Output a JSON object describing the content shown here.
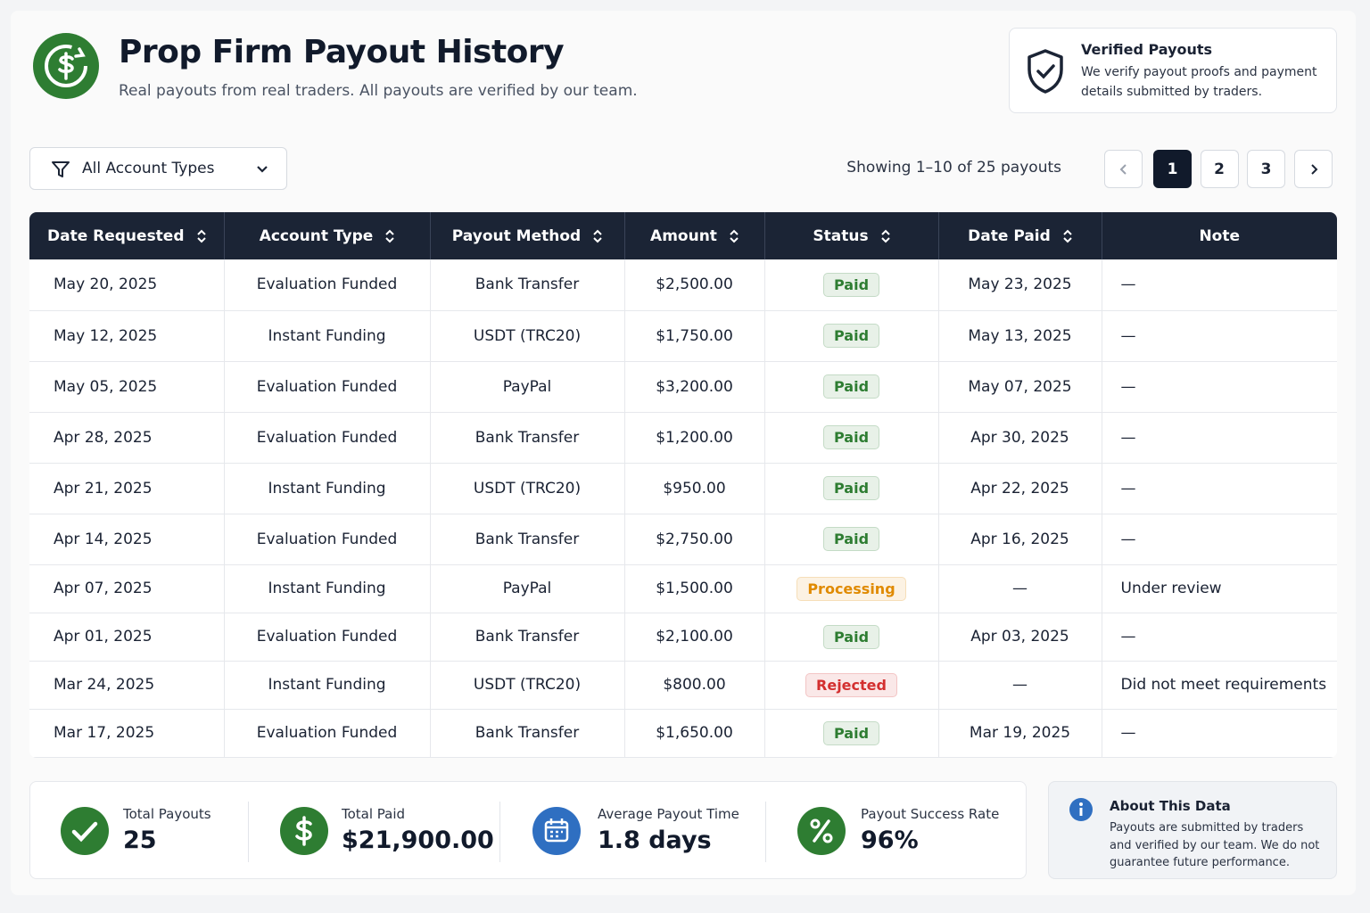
{
  "header": {
    "title": "Prop Firm Payout History",
    "subtitle": "Real payouts from real traders. All payouts are verified by our team."
  },
  "verified": {
    "title": "Verified Payouts",
    "text": "We verify payout proofs and payment details submitted by traders."
  },
  "filter": {
    "label": "All Account Types"
  },
  "pagination": {
    "summary": "Showing 1–10 of 25 payouts",
    "pages": [
      1,
      2,
      3
    ]
  },
  "table": {
    "columns": [
      "Date Requested",
      "Account Type",
      "Payout Method",
      "Amount",
      "Status",
      "Date Paid",
      "Note"
    ],
    "rows": [
      [
        "May 20, 2025",
        "Evaluation Funded",
        "Bank Transfer",
        "$2,500.00",
        "Paid",
        "May 23, 2025",
        "—"
      ],
      [
        "May 12, 2025",
        "Instant Funding",
        "USDT (TRC20)",
        "$1,750.00",
        "Paid",
        "May 13, 2025",
        "—"
      ],
      [
        "May 05, 2025",
        "Evaluation Funded",
        "PayPal",
        "$3,200.00",
        "Paid",
        "May 07, 2025",
        "—"
      ],
      [
        "Apr 28, 2025",
        "Evaluation Funded",
        "Bank Transfer",
        "$1,200.00",
        "Paid",
        "Apr 30, 2025",
        "—"
      ],
      [
        "Apr 21, 2025",
        "Instant Funding",
        "USDT (TRC20)",
        "$950.00",
        "Paid",
        "Apr 22, 2025",
        "—"
      ],
      [
        "Apr 14, 2025",
        "Evaluation Funded",
        "Bank Transfer",
        "$2,750.00",
        "Paid",
        "Apr 16, 2025",
        "—"
      ],
      [
        "Apr 07, 2025",
        "Instant Funding",
        "PayPal",
        "$1,500.00",
        "Processing",
        "—",
        "Under review"
      ],
      [
        "Apr 01, 2025",
        "Evaluation Funded",
        "Bank Transfer",
        "$2,100.00",
        "Paid",
        "Apr 03, 2025",
        "—"
      ],
      [
        "Mar 24, 2025",
        "Instant Funding",
        "USDT (TRC20)",
        "$800.00",
        "Rejected",
        "—",
        "Did not meet requirements"
      ],
      [
        "Mar 17, 2025",
        "Evaluation Funded",
        "Bank Transfer",
        "$1,650.00",
        "Paid",
        "Mar 19, 2025",
        "—"
      ]
    ],
    "status_colors": [
      "#2e7d32",
      "#2e7d32",
      "#2e7d32",
      "#2e7d32",
      "#2e7d32",
      "#2e7d32",
      "#e08a00",
      "#2e7d32",
      "#d32f2f",
      "#2e7d32"
    ]
  },
  "stats": [
    {
      "label": "Total Payouts",
      "value": "25"
    },
    {
      "label": "Total Paid",
      "value": "$21,900.00"
    },
    {
      "label": "Average Payout Time",
      "value": "1.8 days"
    },
    {
      "label": "Payout Success Rate",
      "value": "96%"
    }
  ],
  "about": {
    "title": "About This Data",
    "text": "Payouts are submitted by traders and verified by our team. We do not guarantee future performance."
  }
}
